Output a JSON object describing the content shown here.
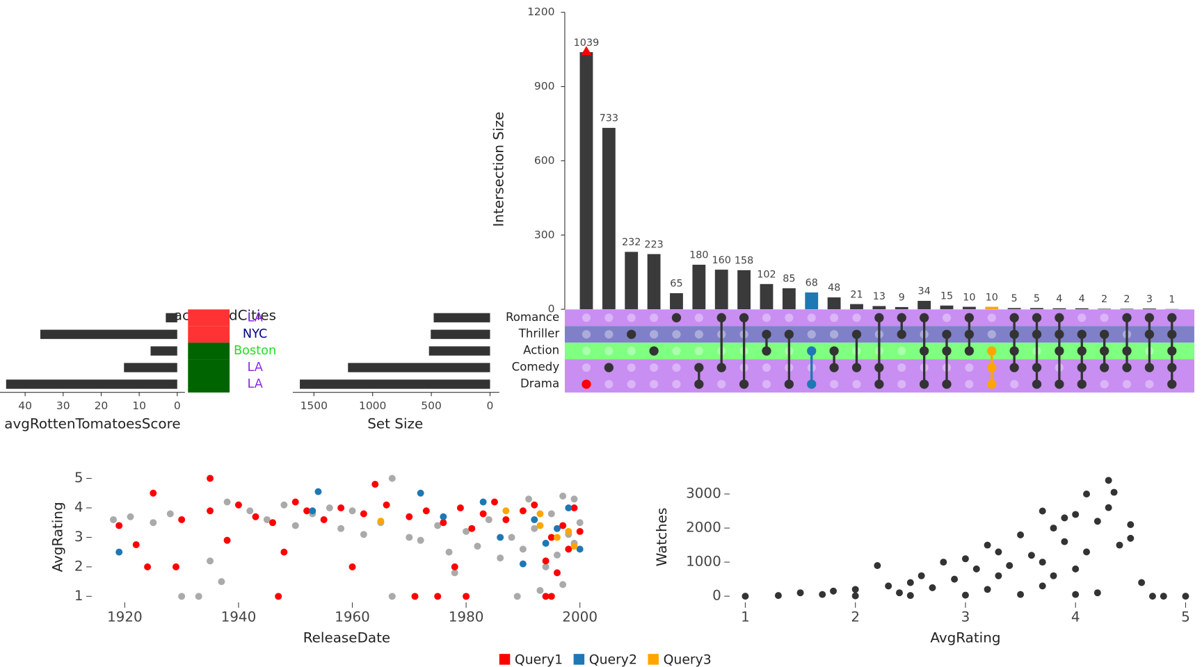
{
  "chart_data": [
    {
      "type": "upset",
      "ylabel": "Intersection Size",
      "ylim": [
        0,
        1200
      ],
      "yticks": [
        0,
        300,
        600,
        900,
        1200
      ],
      "sets": [
        "Romance",
        "Thriller",
        "Action",
        "Comedy",
        "Drama"
      ],
      "set_colors": [
        "#c88ef2",
        "#8080c8",
        "#80ff80",
        "#c88ef2",
        "#c88ef2"
      ],
      "values": [
        1039,
        733,
        232,
        223,
        65,
        180,
        160,
        158,
        102,
        85,
        68,
        48,
        21,
        13,
        9,
        34,
        15,
        10,
        10,
        5,
        5,
        4,
        4,
        2,
        2,
        3,
        1
      ],
      "members": [
        [
          4
        ],
        [
          3
        ],
        [
          1
        ],
        [
          2
        ],
        [
          0
        ],
        [
          3,
          4
        ],
        [
          0,
          3
        ],
        [
          0,
          4
        ],
        [
          1,
          2
        ],
        [
          1,
          4
        ],
        [
          2,
          4
        ],
        [
          2,
          3
        ],
        [
          1,
          3
        ],
        [
          0,
          3,
          4
        ],
        [
          0,
          1
        ],
        [
          0,
          2,
          4
        ],
        [
          1,
          2,
          4
        ],
        [
          0,
          1,
          2
        ],
        [
          2,
          3,
          4
        ],
        [
          0,
          1,
          2,
          3
        ],
        [
          0,
          1,
          3,
          4
        ],
        [
          0,
          1,
          2,
          4
        ],
        [
          1,
          2,
          3,
          4
        ],
        [
          1,
          2,
          3
        ],
        [
          0,
          2,
          3
        ],
        [
          0,
          1,
          3
        ],
        [
          0,
          1,
          2,
          3,
          4
        ]
      ],
      "color": "#3a3a3a",
      "queries": [
        {
          "name": "Query1",
          "color": "#ff0000",
          "column": 0
        },
        {
          "name": "Query2",
          "color": "#1f77b4",
          "column": 10
        },
        {
          "name": "Query3",
          "color": "#ffa500",
          "column": 18
        }
      ],
      "set_size": {
        "xlabel": "Set Size",
        "values": [
          480,
          505,
          520,
          1210,
          1620
        ],
        "xlim": [
          1680,
          0
        ],
        "xticks": [
          1500,
          1000,
          500,
          0
        ]
      },
      "attribute": {
        "xlabel": "avgRottenTomatoesScore",
        "values": [
          3,
          36,
          7,
          14,
          45
        ],
        "xlim": [
          46,
          0
        ],
        "xticks": [
          40,
          30,
          20,
          10,
          0
        ]
      },
      "cities": {
        "title": "acceptedCities",
        "labels": [
          "LA",
          "NYC",
          "Boston",
          "LA",
          "LA"
        ],
        "label_colors": [
          "#8a2be2",
          "#000080",
          "#22dd22",
          "#8a2be2",
          "#8a2be2"
        ],
        "tile_colors": [
          "#ff3333",
          "#ff3333",
          "#006400",
          "#006400",
          "#006400"
        ]
      }
    },
    {
      "type": "scatter",
      "xlabel": "ReleaseDate",
      "ylabel": "AvgRating",
      "xlim": [
        1915,
        2001
      ],
      "xticks": [
        1920,
        1940,
        1960,
        1980,
        2000
      ],
      "ylim": [
        0.9,
        5.1
      ],
      "yticks": [
        1,
        2,
        3,
        4,
        5
      ],
      "series": [
        {
          "color": "#aaaaaa",
          "x": [
            1918,
            1921,
            1925,
            1928,
            1930,
            1933,
            1935,
            1937,
            1938,
            1942,
            1945,
            1948,
            1950,
            1953,
            1956,
            1958,
            1960,
            1962,
            1965,
            1967,
            1967,
            1970,
            1972,
            1975,
            1977,
            1978,
            1980,
            1982,
            1984,
            1986,
            1988,
            1989,
            1990,
            1992,
            1993,
            1994,
            1995,
            1996,
            1997,
            1998,
            1999,
            2000,
            1999,
            1997,
            1991
          ],
          "y": [
            3.6,
            3.7,
            3.5,
            3.8,
            1.0,
            1.0,
            2.2,
            1.5,
            4.2,
            3.9,
            3.6,
            4.1,
            3.4,
            3.8,
            4.0,
            3.3,
            3.9,
            3.1,
            3.5,
            1.0,
            5.0,
            3.0,
            2.9,
            3.4,
            2.5,
            1.8,
            3.2,
            2.7,
            3.6,
            2.3,
            3.0,
            1.0,
            2.6,
            3.3,
            1.2,
            2.0,
            3.8,
            2.4,
            1.4,
            3.1,
            2.8,
            3.5,
            4.3,
            4.4,
            4.3
          ]
        },
        {
          "name": "Query1",
          "color": "#ff0000",
          "x": [
            1919,
            1922,
            1924,
            1925,
            1929,
            1935,
            1938,
            1947,
            1948,
            1960,
            1964,
            1971,
            1975,
            1980,
            1978,
            1994,
            1995,
            1930,
            1935,
            1940,
            1943,
            1946,
            1950,
            1952,
            1955,
            1958,
            1962,
            1966,
            1970,
            1973,
            1976,
            1979,
            1981,
            1983,
            1985,
            1987,
            1990,
            1992,
            1994,
            1995,
            1996,
            1997,
            1998,
            1999,
            2000
          ],
          "y": [
            3.4,
            2.75,
            2.0,
            4.5,
            2.0,
            5.0,
            2.9,
            1.0,
            2.5,
            2.0,
            4.8,
            1.0,
            1.0,
            1.0,
            2.0,
            1.0,
            1.0,
            3.6,
            3.9,
            4.1,
            3.7,
            3.5,
            4.2,
            3.9,
            3.6,
            4.0,
            3.8,
            4.1,
            3.7,
            3.9,
            3.5,
            4.0,
            3.3,
            3.8,
            4.2,
            3.6,
            3.9,
            4.1,
            2.2,
            3.0,
            1.8,
            3.4,
            2.6,
            4.0,
            3.2
          ]
        },
        {
          "name": "Query2",
          "color": "#1f77b4",
          "x": [
            1919,
            1954,
            1953,
            1972,
            1976,
            1983,
            1986,
            1990,
            1992,
            1994,
            1996,
            1998,
            2000
          ],
          "y": [
            2.5,
            4.55,
            3.9,
            4.5,
            3.7,
            4.2,
            3.0,
            2.1,
            3.6,
            2.8,
            3.3,
            4.0,
            2.6
          ]
        },
        {
          "name": "Query3",
          "color": "#ffa500",
          "x": [
            1965,
            1987,
            1993,
            1993,
            1996,
            1998,
            1999
          ],
          "y": [
            3.55,
            3.9,
            3.4,
            3.8,
            3.0,
            3.2,
            2.7
          ]
        }
      ]
    },
    {
      "type": "scatter",
      "xlabel": "AvgRating",
      "ylabel": "Watches",
      "xlim": [
        0.9,
        5.1
      ],
      "xticks": [
        1,
        2,
        3,
        4,
        5
      ],
      "ylim": [
        -100,
        3500
      ],
      "yticks": [
        0,
        1000,
        2000,
        3000
      ],
      "series": [
        {
          "color": "#333333",
          "x": [
            1,
            1.3,
            1.5,
            1.7,
            1.8,
            2.0,
            2.2,
            2.3,
            2.5,
            2.6,
            2.7,
            2.8,
            2.9,
            3.0,
            3.1,
            3.2,
            3.3,
            3.3,
            3.4,
            3.5,
            3.6,
            3.7,
            3.7,
            3.8,
            3.8,
            3.9,
            3.9,
            4.0,
            4.0,
            4.1,
            4.1,
            4.2,
            4.3,
            4.3,
            4.35,
            4.4,
            4.5,
            4.5,
            4.6,
            4.7,
            4.8,
            5.0,
            4.2,
            3.5,
            3.0,
            2.5,
            2.0,
            3.7,
            2.4,
            3.2,
            4.0
          ],
          "y": [
            0,
            20,
            100,
            50,
            150,
            200,
            900,
            300,
            400,
            600,
            250,
            1000,
            500,
            1100,
            800,
            1500,
            1300,
            600,
            900,
            1800,
            1200,
            2500,
            1000,
            2000,
            600,
            1600,
            2300,
            2400,
            800,
            3000,
            1300,
            2200,
            3400,
            2600,
            3050,
            1500,
            2100,
            1700,
            400,
            0,
            0,
            0,
            100,
            50,
            30,
            20,
            10,
            300,
            100,
            200,
            50
          ]
        }
      ]
    }
  ]
}
